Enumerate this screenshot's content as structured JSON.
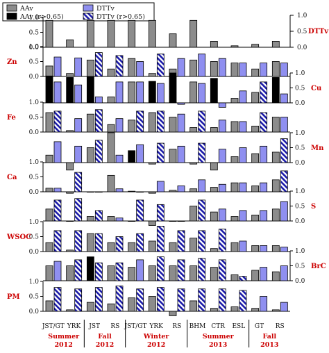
{
  "chart_data": {
    "type": "bar",
    "legend": {
      "placement": "top-left",
      "entries": [
        {
          "key": "aav",
          "label": "AAv",
          "color": "#8c8c8c",
          "hatched": false
        },
        {
          "key": "aav_sig",
          "label": "AAv (r>0.65)",
          "color": "#000000",
          "hatched": false
        },
        {
          "key": "dttv",
          "label": "DTTv",
          "color": "#8f8ff0",
          "hatched": false
        },
        {
          "key": "dttv_sig",
          "label": "DTTv (r>0.65)",
          "color": "#1a1aa8",
          "hatched": true
        }
      ]
    },
    "left_axis": {
      "title": "",
      "ticks": [
        "0.0",
        "0.5",
        "1.0"
      ],
      "ylim": [
        0,
        1.0
      ]
    },
    "right_axis": {
      "title": "DTTv",
      "ticks": [
        "0.0",
        "0.5",
        "1.0"
      ],
      "ylim": [
        0,
        1.0
      ]
    },
    "categories": [
      "JST/GT",
      "YRK",
      "JST",
      "RS",
      "JST/GT",
      "YRK",
      "RS",
      "BHM",
      "CTR",
      "ESL",
      "GT",
      "RS"
    ],
    "seasons": [
      {
        "line1": "Summer",
        "line2": "2012",
        "from": 0,
        "to": 1
      },
      {
        "line1": "Fall",
        "line2": "2012",
        "from": 2,
        "to": 3
      },
      {
        "line1": "Winter",
        "line2": "2012",
        "from": 4,
        "to": 6
      },
      {
        "line1": "Summer",
        "line2": "2013",
        "from": 7,
        "to": 9
      },
      {
        "line1": "Fall",
        "line2": "2013",
        "from": 10,
        "to": 11
      }
    ],
    "panels": [
      {
        "label": "",
        "side": "none",
        "ticks": true,
        "aav": [
          0.9,
          0.25,
          0.9,
          0.9,
          0.9,
          0.9,
          0.45,
          0.9,
          0.2,
          0.05,
          0.1,
          0.2
        ],
        "dttv": null
      },
      {
        "label": "Zn",
        "side": "left",
        "ticks": true,
        "aav": [
          0.35,
          0.1,
          0.55,
          0.25,
          0.6,
          0.1,
          0.25,
          0.55,
          0.5,
          0.45,
          0.25,
          0.5
        ],
        "aav_sig": [
          0,
          0,
          0,
          0,
          0,
          0,
          0,
          0,
          0,
          0,
          0,
          0
        ],
        "dttv": [
          0.65,
          0.62,
          0.8,
          0.7,
          0.5,
          0.75,
          0.6,
          0.75,
          0.6,
          0.45,
          0.45,
          0.45
        ],
        "dttv_sig": [
          0,
          0,
          1,
          1,
          0,
          1,
          0,
          0,
          0,
          0,
          0,
          0
        ]
      },
      {
        "label": "Cu",
        "side": "right",
        "ticks": true,
        "aav": [
          0.9,
          0.85,
          0.88,
          0.2,
          0.7,
          0.72,
          1.0,
          0.7,
          0.82,
          0.15,
          0.35,
          0.85
        ],
        "aav_sig": [
          1,
          1,
          1,
          0,
          0,
          1,
          1,
          0,
          1,
          0,
          0,
          1
        ],
        "dttv": [
          0.7,
          0.6,
          0.2,
          0.7,
          0.7,
          0.65,
          -0.05,
          0.65,
          -0.15,
          0.4,
          0.7,
          0.3
        ],
        "dttv_sig": [
          0,
          0,
          0,
          0,
          0,
          0,
          0,
          0,
          0,
          0,
          1,
          0
        ]
      },
      {
        "label": "Fe",
        "side": "left",
        "ticks": true,
        "aav": [
          0.65,
          0.05,
          0.6,
          0.25,
          0.4,
          0.65,
          0.5,
          0.15,
          0.15,
          0.35,
          0.2,
          0.5
        ],
        "aav_sig": [
          0,
          0,
          0,
          0,
          0,
          0,
          0,
          0,
          0,
          0,
          0,
          0
        ],
        "dttv": [
          0.7,
          0.45,
          0.75,
          0.45,
          0.7,
          0.7,
          0.6,
          0.7,
          0.4,
          0.35,
          0.65,
          0.5
        ],
        "dttv_sig": [
          1,
          0,
          1,
          0,
          1,
          1,
          0,
          1,
          0,
          0,
          1,
          0
        ]
      },
      {
        "label": "Mn",
        "side": "right",
        "ticks": true,
        "aav": [
          0.25,
          -0.25,
          0.5,
          1.0,
          0.4,
          -0.05,
          0.45,
          -0.05,
          -0.25,
          0.2,
          0.3,
          0.35
        ],
        "aav_sig": [
          0,
          0,
          0,
          0,
          1,
          0,
          0,
          0,
          0,
          0,
          0,
          0
        ],
        "dttv": [
          0.7,
          0.55,
          0.75,
          0.25,
          0.6,
          0.65,
          0.55,
          0.65,
          0.45,
          0.5,
          0.55,
          0.8
        ],
        "dttv_sig": [
          0,
          0,
          1,
          0,
          0,
          1,
          0,
          1,
          0,
          0,
          0,
          1
        ]
      },
      {
        "label": "Ca",
        "side": "left",
        "ticks": true,
        "aav": [
          0.12,
          -0.05,
          0.0,
          0.55,
          0.02,
          -0.05,
          0.05,
          0.1,
          0.15,
          0.3,
          0.2,
          0.4
        ],
        "aav_sig": [
          0,
          0,
          0,
          0,
          0,
          0,
          0,
          0,
          0,
          0,
          0,
          0
        ],
        "dttv": [
          0.12,
          0.65,
          0.0,
          0.1,
          0.0,
          0.35,
          0.2,
          0.4,
          0.25,
          0.3,
          0.3,
          0.7
        ],
        "dttv_sig": [
          0,
          1,
          0,
          0,
          0,
          0,
          0,
          0,
          0,
          0,
          0,
          1
        ]
      },
      {
        "label": "S",
        "side": "right",
        "ticks": true,
        "aav": [
          0.4,
          0.0,
          0.15,
          0.15,
          0.0,
          -0.15,
          0.0,
          0.5,
          0.3,
          0.15,
          0.2,
          0.4
        ],
        "aav_sig": [
          0,
          0,
          0,
          0,
          0,
          0,
          0,
          0,
          0,
          0,
          0,
          0
        ],
        "dttv": [
          0.7,
          0.75,
          0.35,
          0.1,
          0.7,
          0.55,
          0.0,
          0.7,
          0.4,
          0.35,
          0.35,
          0.65
        ],
        "dttv_sig": [
          1,
          1,
          1,
          0,
          1,
          1,
          1,
          1,
          0,
          0,
          0,
          0
        ]
      },
      {
        "label": "WSOC",
        "side": "left",
        "ticks": true,
        "aav": [
          0.3,
          0.05,
          0.6,
          0.3,
          0.3,
          0.35,
          0.3,
          0.45,
          0.1,
          0.3,
          0.2,
          0.2
        ],
        "aav_sig": [
          0,
          0,
          0,
          0,
          0,
          0,
          0,
          0,
          0,
          0,
          0,
          0
        ],
        "dttv": [
          0.7,
          0.7,
          0.6,
          0.5,
          0.6,
          0.85,
          0.7,
          0.7,
          0.75,
          0.35,
          0.2,
          0.15
        ],
        "dttv_sig": [
          1,
          1,
          1,
          1,
          1,
          1,
          1,
          1,
          1,
          0,
          0,
          0
        ]
      },
      {
        "label": "BrC",
        "side": "right",
        "ticks": true,
        "aav": [
          0.5,
          0.5,
          0.8,
          0.5,
          0.45,
          0.5,
          0.5,
          0.5,
          0.45,
          0.2,
          0.35,
          0.3
        ],
        "aav_sig": [
          0,
          0,
          1,
          0,
          0,
          0,
          0,
          0,
          0,
          0,
          0,
          0
        ],
        "dttv": [
          0.65,
          0.7,
          0.6,
          0.6,
          0.7,
          0.8,
          0.7,
          0.75,
          0.7,
          0.15,
          0.45,
          0.5
        ],
        "dttv_sig": [
          0,
          1,
          1,
          1,
          0,
          1,
          1,
          1,
          1,
          1,
          0,
          0
        ]
      },
      {
        "label": "PM",
        "side": "left",
        "ticks": true,
        "aav": [
          0.35,
          0.05,
          0.3,
          0.25,
          0.45,
          0.5,
          -0.15,
          0.35,
          0.1,
          0.15,
          0.1,
          0.05
        ],
        "aav_sig": [
          0,
          0,
          0,
          0,
          0,
          0,
          0,
          0,
          0,
          0,
          0,
          0
        ],
        "dttv": [
          0.8,
          0.75,
          0.8,
          0.85,
          0.75,
          0.8,
          0.75,
          0.75,
          0.75,
          0.7,
          0.5,
          0.3
        ],
        "dttv_sig": [
          1,
          1,
          1,
          1,
          1,
          1,
          1,
          1,
          1,
          1,
          0,
          0
        ]
      }
    ]
  }
}
